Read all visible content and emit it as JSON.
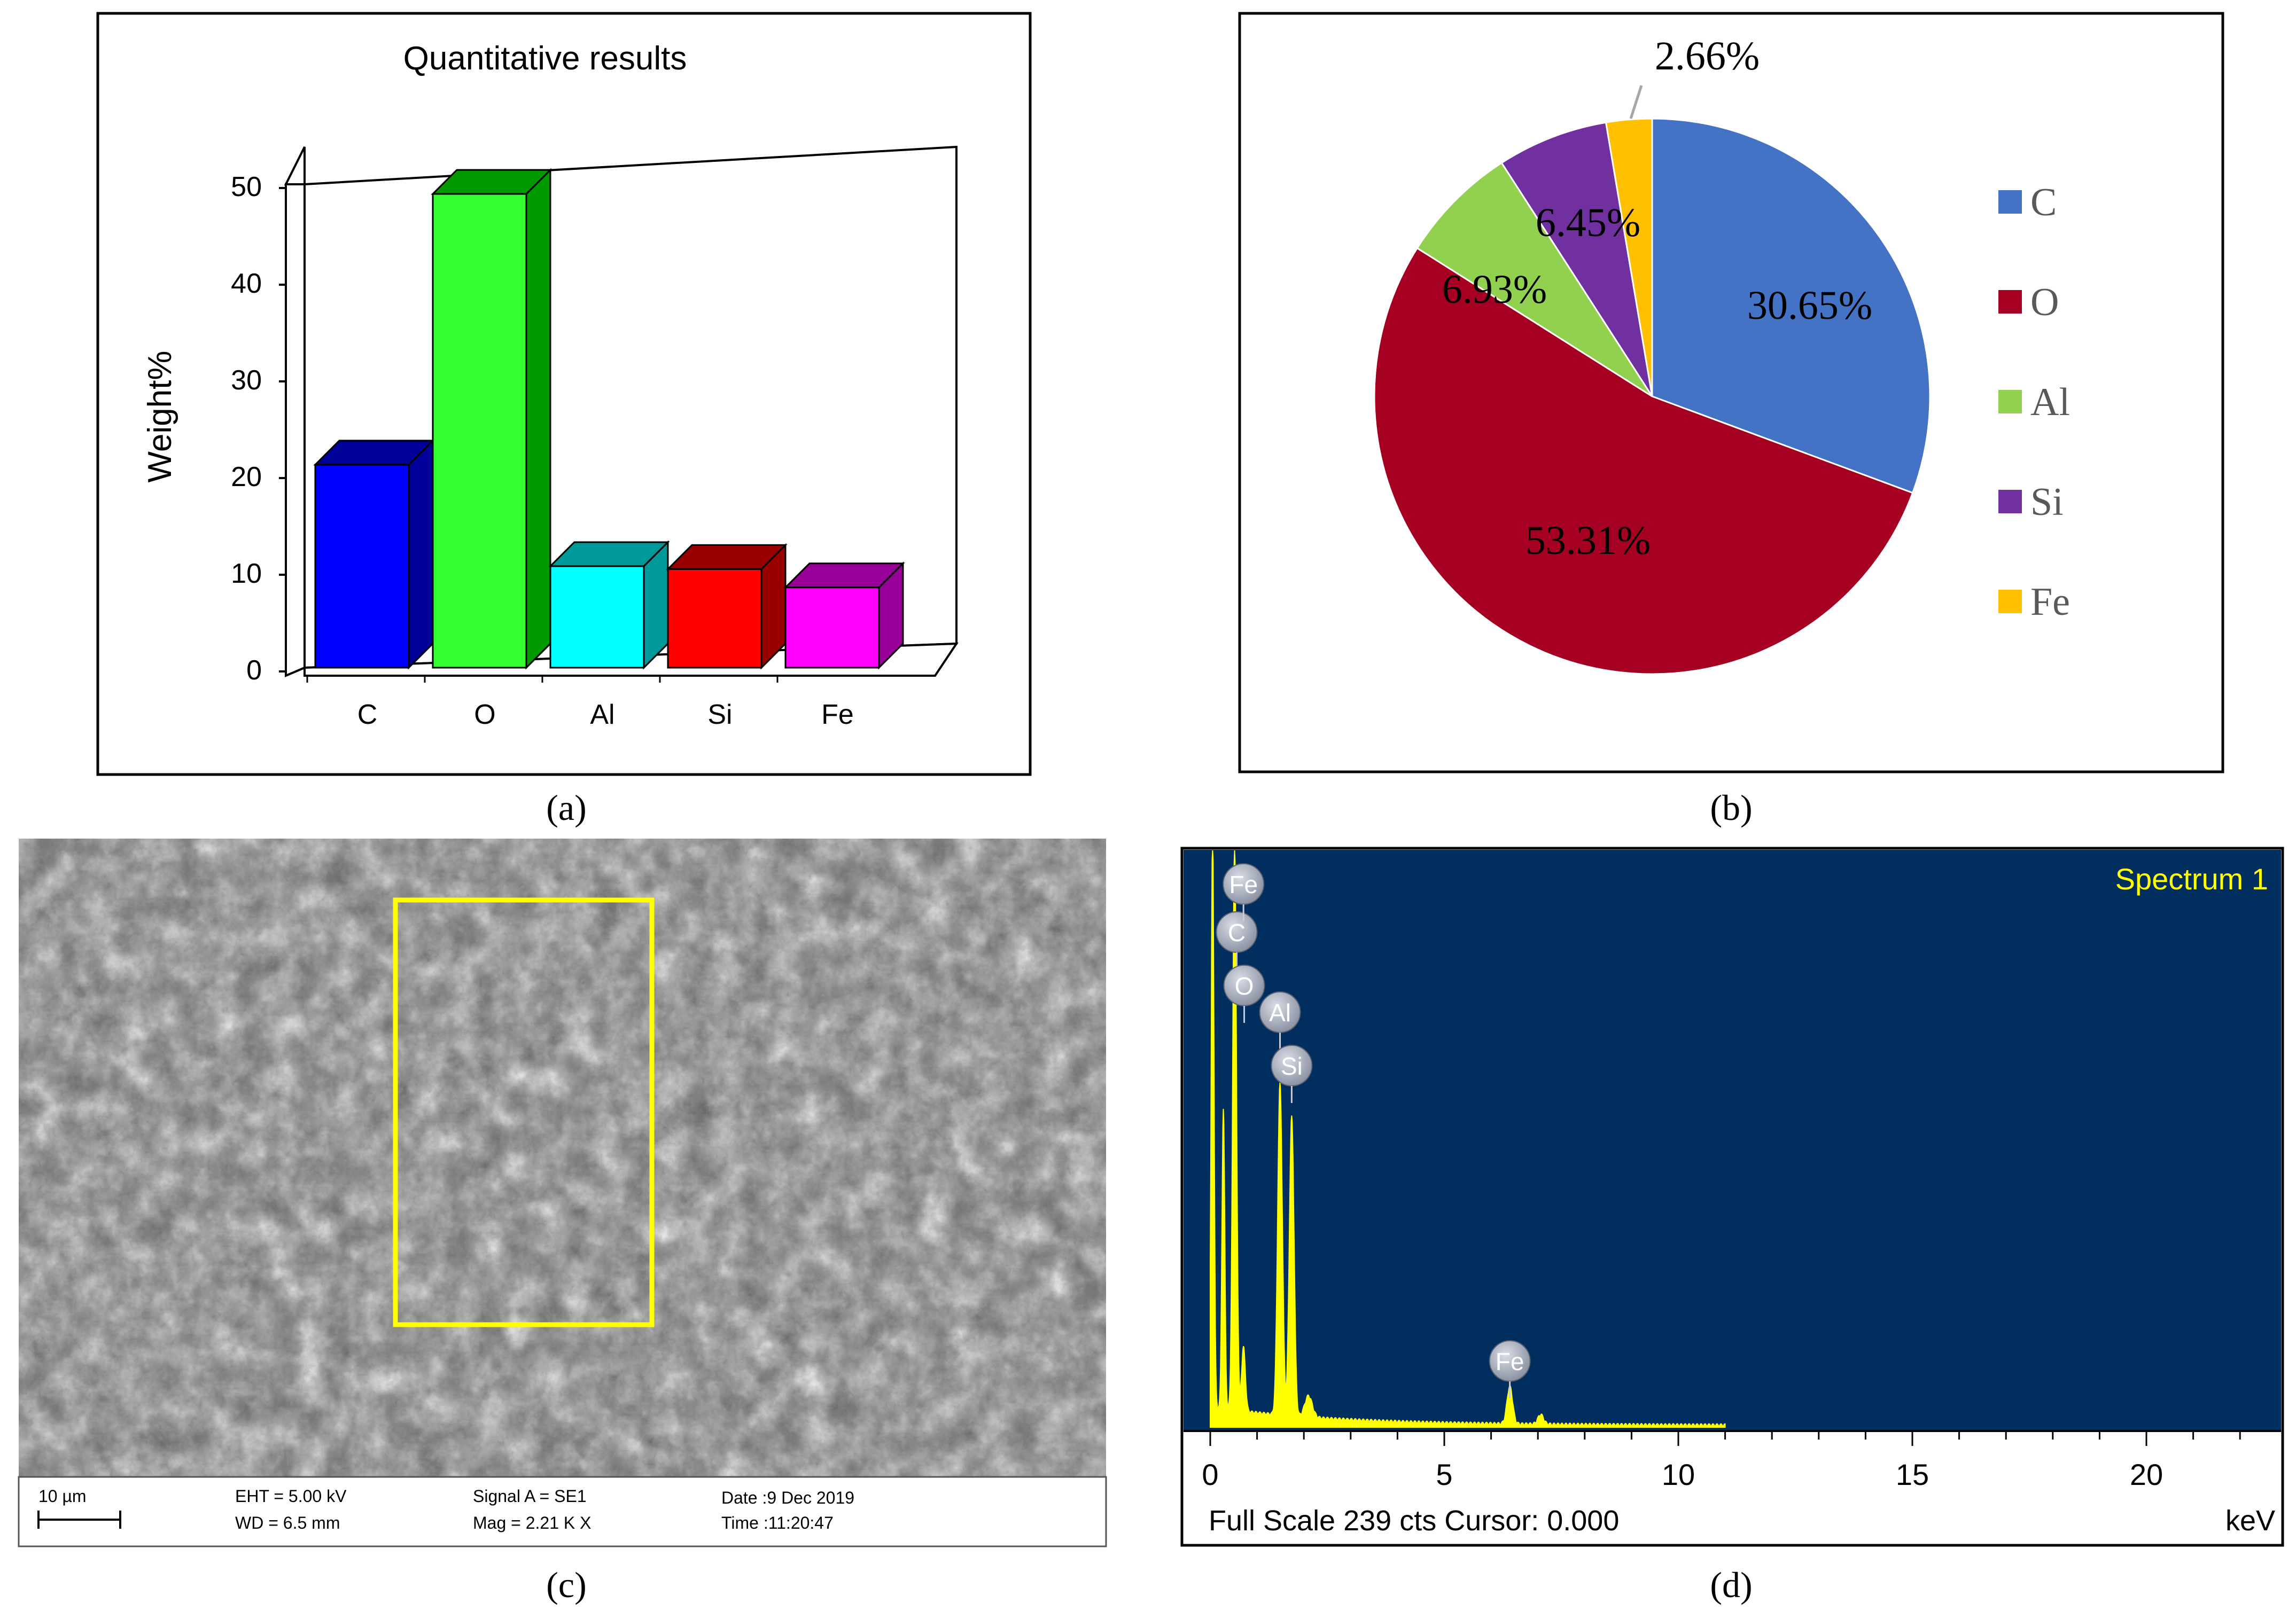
{
  "panel_labels": [
    "(a)",
    "(b)",
    "(c)",
    "(d)"
  ],
  "chart_data": [
    {
      "type": "bar",
      "title": "Quantitative results",
      "xlabel": "",
      "ylabel": "Weight%",
      "categories": [
        "C",
        "O",
        "Al",
        "Si",
        "Fe"
      ],
      "values": [
        21,
        49,
        10.5,
        10.2,
        8.3
      ],
      "colors": [
        "#0000ff",
        "#33ff33",
        "#00ffff",
        "#ff0000",
        "#ff00ff"
      ],
      "side_colors": [
        "#000099",
        "#009900",
        "#009999",
        "#990000",
        "#990099"
      ],
      "ylim": [
        0,
        50
      ],
      "yticks": [
        0,
        10,
        20,
        30,
        40,
        50
      ],
      "grid": false
    },
    {
      "type": "pie",
      "categories": [
        "C",
        "O",
        "Al",
        "Si",
        "Fe"
      ],
      "values": [
        30.65,
        53.31,
        6.93,
        6.45,
        2.66
      ],
      "data_labels": [
        "30.65%",
        "53.31%",
        "6.93%",
        "6.45%",
        "2.66%"
      ],
      "colors": [
        "#4472c4",
        "#a50021",
        "#92d050",
        "#7030a0",
        "#ffc000"
      ],
      "legend": "right"
    },
    {
      "type": "line",
      "title": "Spectrum 1",
      "xlabel": "keV",
      "xlim": [
        0,
        25
      ],
      "xticks": [
        0,
        5,
        10,
        15,
        20
      ],
      "peaks": [
        {
          "element": "C",
          "x": 0.28
        },
        {
          "element": "O",
          "x": 0.52
        },
        {
          "element": "Al",
          "x": 1.49
        },
        {
          "element": "Si",
          "x": 1.74
        },
        {
          "element": "Fe",
          "x": 0.71
        },
        {
          "element": "Fe",
          "x": 6.4
        }
      ],
      "series_color": "#ffff00",
      "background": "#002f5f",
      "footer": "Full Scale 239 cts Cursor: 0.000"
    }
  ],
  "sem": {
    "scale_bar": "10 µm",
    "eht": "EHT =  5.00 kV",
    "wd": "WD =  6.5 mm",
    "signal": "Signal A = SE1",
    "mag": "Mag =     2.21 K X",
    "date": "Date :9 Dec 2019",
    "time": "Time :11:20:47"
  }
}
